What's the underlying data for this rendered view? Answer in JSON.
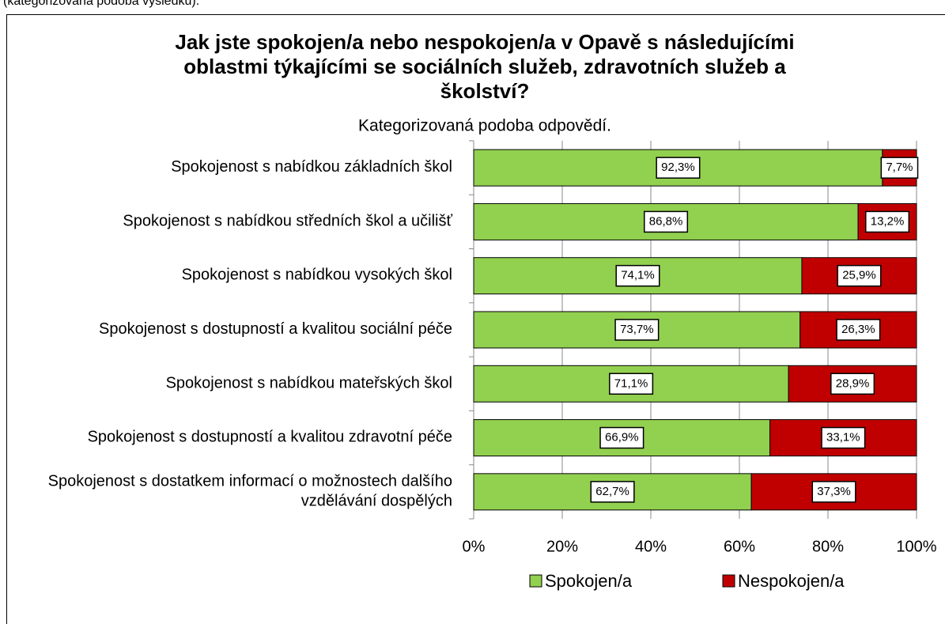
{
  "caption": "(kategorizovaná podoba výsledku).",
  "chart_data": {
    "type": "stacked_bar_horizontal",
    "title": "Jak jste spokojen/a nebo nespokojen/a v Opavě s následujícími oblastmi týkajícími se sociálních služeb, zdravotních služeb a školství?",
    "subtitle": "Kategorizovaná podoba odpovědí.",
    "categories": [
      "Spokojenost s nabídkou základních škol",
      "Spokojenost s nabídkou středních škol a učilišť",
      "Spokojenost s nabídkou vysokých škol",
      "Spokojenost s dostupností a kvalitou sociální péče",
      "Spokojenost s nabídkou mateřských škol",
      "Spokojenost s dostupností a kvalitou zdravotní péče",
      "Spokojenost s dostatkem informací o možnostech dalšího vzdělávání dospělých"
    ],
    "series": [
      {
        "name": "Spokojen/a",
        "color": "#92d050",
        "values": [
          92.3,
          86.8,
          74.1,
          73.7,
          71.1,
          66.9,
          62.7
        ],
        "value_labels": [
          "92,3%",
          "86,8%",
          "74,1%",
          "73,7%",
          "71,1%",
          "66,9%",
          "62,7%"
        ]
      },
      {
        "name": "Nespokojen/a",
        "color": "#c00000",
        "values": [
          7.7,
          13.2,
          25.9,
          26.3,
          28.9,
          33.1,
          37.3
        ],
        "value_labels": [
          "7,7%",
          "13,2%",
          "25,9%",
          "26,3%",
          "28,9%",
          "33,1%",
          "37,3%"
        ]
      }
    ],
    "xlim": [
      0,
      100
    ],
    "xticks": [
      {
        "value": 0,
        "label": "0%"
      },
      {
        "value": 20,
        "label": "20%"
      },
      {
        "value": 40,
        "label": "40%"
      },
      {
        "value": 60,
        "label": "60%"
      },
      {
        "value": 80,
        "label": "80%"
      },
      {
        "value": 100,
        "label": "100%"
      }
    ],
    "grid": true,
    "legend": "bottom"
  }
}
